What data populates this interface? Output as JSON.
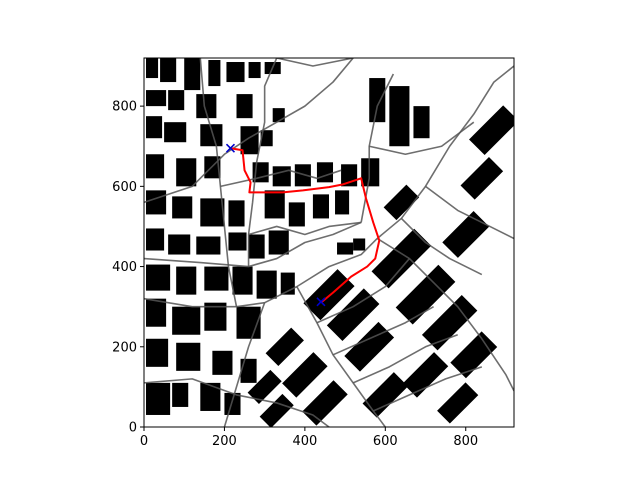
{
  "chart_data": {
    "type": "scatter",
    "title": "",
    "xlabel": "",
    "ylabel": "",
    "xlim": [
      0,
      920
    ],
    "ylim": [
      0,
      920
    ],
    "xticks": [
      0,
      200,
      400,
      600,
      800
    ],
    "yticks": [
      0,
      200,
      400,
      600,
      800
    ],
    "grid": false,
    "background": "occupancy map of building footprints (black) with a grey road/street network",
    "buildings": [
      [
        5,
        870,
        30,
        55
      ],
      [
        40,
        860,
        40,
        60
      ],
      [
        100,
        840,
        40,
        80
      ],
      [
        160,
        850,
        30,
        65
      ],
      [
        205,
        860,
        45,
        50
      ],
      [
        260,
        870,
        30,
        40
      ],
      [
        300,
        880,
        40,
        30
      ],
      [
        5,
        800,
        50,
        40
      ],
      [
        60,
        790,
        40,
        50
      ],
      [
        130,
        770,
        50,
        60
      ],
      [
        230,
        770,
        40,
        60
      ],
      [
        5,
        720,
        40,
        55
      ],
      [
        50,
        710,
        55,
        50
      ],
      [
        140,
        700,
        55,
        55
      ],
      [
        240,
        680,
        45,
        70
      ],
      [
        290,
        700,
        30,
        40
      ],
      [
        320,
        760,
        30,
        35
      ],
      [
        5,
        620,
        45,
        60
      ],
      [
        80,
        600,
        50,
        70
      ],
      [
        150,
        620,
        40,
        55
      ],
      [
        270,
        610,
        40,
        50
      ],
      [
        320,
        600,
        45,
        50
      ],
      [
        375,
        600,
        40,
        55
      ],
      [
        430,
        610,
        40,
        50
      ],
      [
        490,
        600,
        40,
        55
      ],
      [
        540,
        600,
        45,
        70
      ],
      [
        5,
        530,
        50,
        60
      ],
      [
        70,
        520,
        50,
        55
      ],
      [
        140,
        500,
        60,
        70
      ],
      [
        210,
        500,
        40,
        65
      ],
      [
        300,
        520,
        50,
        70
      ],
      [
        360,
        500,
        40,
        60
      ],
      [
        420,
        520,
        40,
        60
      ],
      [
        475,
        530,
        35,
        60
      ],
      [
        5,
        440,
        45,
        55
      ],
      [
        60,
        430,
        55,
        50
      ],
      [
        130,
        430,
        60,
        45
      ],
      [
        210,
        440,
        45,
        45
      ],
      [
        260,
        420,
        40,
        60
      ],
      [
        310,
        430,
        50,
        60
      ],
      [
        480,
        430,
        40,
        30
      ],
      [
        520,
        440,
        30,
        30
      ],
      [
        5,
        340,
        60,
        65
      ],
      [
        80,
        330,
        50,
        70
      ],
      [
        150,
        340,
        60,
        60
      ],
      [
        220,
        330,
        50,
        70
      ],
      [
        280,
        320,
        50,
        70
      ],
      [
        340,
        330,
        35,
        55
      ],
      [
        5,
        250,
        50,
        70
      ],
      [
        70,
        230,
        70,
        70
      ],
      [
        150,
        240,
        55,
        70
      ],
      [
        230,
        220,
        60,
        80
      ],
      [
        5,
        150,
        55,
        70
      ],
      [
        80,
        140,
        60,
        70
      ],
      [
        170,
        130,
        50,
        60
      ],
      [
        240,
        110,
        40,
        60
      ],
      [
        5,
        30,
        60,
        80
      ],
      [
        70,
        50,
        40,
        60
      ],
      [
        140,
        40,
        50,
        70
      ],
      [
        200,
        30,
        40,
        55
      ],
      [
        560,
        760,
        40,
        110
      ],
      [
        610,
        700,
        50,
        150
      ],
      [
        670,
        720,
        40,
        80
      ]
    ],
    "rotated_blocks": [
      [
        460,
        330,
        120,
        60
      ],
      [
        520,
        280,
        130,
        55
      ],
      [
        560,
        200,
        120,
        55
      ],
      [
        640,
        420,
        150,
        60
      ],
      [
        700,
        330,
        150,
        60
      ],
      [
        760,
        260,
        140,
        55
      ],
      [
        800,
        480,
        110,
        55
      ],
      [
        820,
        180,
        110,
        55
      ],
      [
        840,
        620,
        100,
        50
      ],
      [
        350,
        200,
        90,
        45
      ],
      [
        400,
        130,
        110,
        50
      ],
      [
        450,
        60,
        110,
        50
      ],
      [
        300,
        100,
        80,
        40
      ],
      [
        330,
        40,
        80,
        40
      ],
      [
        600,
        80,
        110,
        50
      ],
      [
        700,
        130,
        110,
        50
      ],
      [
        780,
        60,
        100,
        45
      ],
      [
        870,
        740,
        120,
        55
      ],
      [
        640,
        560,
        80,
        45
      ]
    ],
    "roads": [
      [
        [
          0,
          560
        ],
        [
          120,
          600
        ],
        [
          200,
          680
        ],
        [
          260,
          720
        ],
        [
          330,
          760
        ],
        [
          400,
          800
        ],
        [
          470,
          860
        ],
        [
          520,
          920
        ]
      ],
      [
        [
          0,
          420
        ],
        [
          140,
          410
        ],
        [
          260,
          400
        ],
        [
          330,
          420
        ],
        [
          400,
          460
        ],
        [
          470,
          480
        ],
        [
          540,
          510
        ]
      ],
      [
        [
          0,
          320
        ],
        [
          120,
          300
        ],
        [
          230,
          300
        ],
        [
          300,
          310
        ],
        [
          380,
          350
        ]
      ],
      [
        [
          0,
          110
        ],
        [
          120,
          120
        ],
        [
          230,
          80
        ],
        [
          330,
          60
        ],
        [
          420,
          30
        ],
        [
          460,
          0
        ]
      ],
      [
        [
          200,
          0
        ],
        [
          230,
          100
        ],
        [
          260,
          200
        ],
        [
          300,
          310
        ]
      ],
      [
        [
          140,
          920
        ],
        [
          150,
          800
        ],
        [
          180,
          700
        ],
        [
          190,
          600
        ],
        [
          200,
          500
        ],
        [
          210,
          400
        ],
        [
          230,
          300
        ]
      ],
      [
        [
          330,
          920
        ],
        [
          300,
          850
        ],
        [
          300,
          760
        ],
        [
          280,
          660
        ],
        [
          270,
          560
        ],
        [
          260,
          480
        ],
        [
          260,
          400
        ]
      ],
      [
        [
          380,
          350
        ],
        [
          430,
          260
        ],
        [
          470,
          180
        ],
        [
          520,
          110
        ],
        [
          570,
          40
        ],
        [
          600,
          0
        ]
      ],
      [
        [
          580,
          470
        ],
        [
          640,
          520
        ],
        [
          700,
          600
        ],
        [
          760,
          700
        ],
        [
          820,
          780
        ],
        [
          870,
          860
        ],
        [
          920,
          900
        ]
      ],
      [
        [
          580,
          470
        ],
        [
          660,
          420
        ],
        [
          720,
          360
        ],
        [
          780,
          300
        ],
        [
          840,
          220
        ],
        [
          900,
          130
        ],
        [
          920,
          90
        ]
      ],
      [
        [
          540,
          510
        ],
        [
          560,
          620
        ],
        [
          560,
          700
        ],
        [
          580,
          800
        ],
        [
          620,
          880
        ]
      ],
      [
        [
          560,
          700
        ],
        [
          650,
          680
        ],
        [
          740,
          700
        ],
        [
          820,
          760
        ]
      ],
      [
        [
          330,
          920
        ],
        [
          420,
          900
        ],
        [
          520,
          920
        ]
      ],
      [
        [
          380,
          350
        ],
        [
          460,
          400
        ],
        [
          540,
          430
        ],
        [
          580,
          470
        ]
      ],
      [
        [
          430,
          260
        ],
        [
          520,
          300
        ],
        [
          600,
          350
        ],
        [
          660,
          420
        ]
      ],
      [
        [
          470,
          180
        ],
        [
          560,
          220
        ],
        [
          650,
          260
        ],
        [
          720,
          300
        ]
      ],
      [
        [
          520,
          110
        ],
        [
          610,
          150
        ],
        [
          700,
          200
        ],
        [
          780,
          230
        ]
      ],
      [
        [
          570,
          40
        ],
        [
          660,
          80
        ],
        [
          750,
          120
        ],
        [
          840,
          150
        ]
      ],
      [
        [
          700,
          600
        ],
        [
          780,
          540
        ],
        [
          860,
          500
        ],
        [
          920,
          470
        ]
      ],
      [
        [
          640,
          520
        ],
        [
          700,
          460
        ],
        [
          760,
          420
        ],
        [
          840,
          380
        ]
      ],
      [
        [
          260,
          480
        ],
        [
          330,
          500
        ],
        [
          400,
          480
        ],
        [
          460,
          500
        ],
        [
          540,
          510
        ]
      ],
      [
        [
          190,
          600
        ],
        [
          280,
          620
        ],
        [
          360,
          640
        ],
        [
          430,
          620
        ],
        [
          490,
          640
        ]
      ]
    ],
    "path": [
      [
        215,
        695
      ],
      [
        245,
        690
      ],
      [
        250,
        640
      ],
      [
        265,
        610
      ],
      [
        262,
        585
      ],
      [
        345,
        585
      ],
      [
        395,
        590
      ],
      [
        460,
        598
      ],
      [
        495,
        605
      ],
      [
        540,
        620
      ],
      [
        552,
        570
      ],
      [
        570,
        510
      ],
      [
        585,
        465
      ],
      [
        575,
        420
      ],
      [
        555,
        400
      ],
      [
        515,
        375
      ],
      [
        470,
        335
      ],
      [
        440,
        310
      ]
    ],
    "path_color": "#ff0000",
    "road_color": "#555555",
    "markers": [
      {
        "x": 215,
        "y": 695,
        "symbol": "x",
        "color": "#0000cc"
      },
      {
        "x": 440,
        "y": 312,
        "symbol": "x",
        "color": "#0000cc"
      }
    ]
  }
}
